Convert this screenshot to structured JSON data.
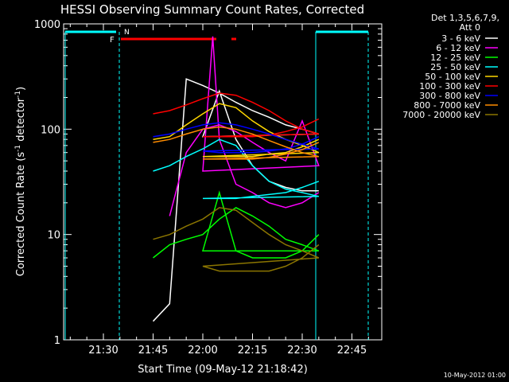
{
  "chart_data": {
    "type": "line",
    "title": "HESSI Observing Summary Count Rates, Corrected",
    "xlabel": "Start Time (09-May-12 21:18:42)",
    "ylabel_main": "Corrected Count Rate (s",
    "ylabel_sup1": "-1",
    "ylabel_mid": " detector",
    "ylabel_sup2": "-1",
    "ylabel_end": ")",
    "footer_date": "10-May-2012 01:00",
    "y_scale": "log",
    "xlim_minutes": [
      21.3,
      22.9
    ],
    "ylim": [
      1,
      1000
    ],
    "x_ticks": [
      "21:30",
      "21:45",
      "22:00",
      "22:15",
      "22:30",
      "22:45"
    ],
    "y_ticks": [
      "1",
      "10",
      "100",
      "1000"
    ],
    "legend": {
      "header1": "Det 1,3,5,6,7,9,",
      "header2": "Att 0",
      "position": "right"
    },
    "flags": [
      {
        "label": "F",
        "color": "#ff0000"
      },
      {
        "label": "N",
        "color": "#00ffff"
      }
    ],
    "series": [
      {
        "name": "3 - 6 keV",
        "color": "#ffffff",
        "points": [
          [
            21.45,
            1.5
          ],
          [
            21.5,
            2.2
          ],
          [
            21.55,
            300
          ],
          [
            21.6,
            260
          ],
          [
            21.65,
            220
          ],
          [
            21.7,
            180
          ],
          [
            21.75,
            150
          ],
          [
            21.8,
            130
          ],
          [
            21.85,
            110
          ],
          [
            21.9,
            100
          ],
          [
            21.95,
            90
          ],
          [
            22.0,
            85
          ],
          [
            22.05,
            230
          ],
          [
            22.1,
            80
          ],
          [
            22.15,
            45
          ],
          [
            22.2,
            32
          ],
          [
            22.25,
            28
          ],
          [
            22.3,
            26
          ],
          [
            22.35,
            26
          ]
        ]
      },
      {
        "name": "6 - 12 keV",
        "color": "#ff00ff",
        "points": [
          [
            21.5,
            15
          ],
          [
            21.55,
            60
          ],
          [
            21.6,
            100
          ],
          [
            21.65,
            110
          ],
          [
            21.7,
            95
          ],
          [
            21.75,
            75
          ],
          [
            21.8,
            60
          ],
          [
            21.85,
            50
          ],
          [
            21.9,
            120
          ],
          [
            21.95,
            45
          ],
          [
            22.0,
            40
          ],
          [
            22.03,
            760
          ],
          [
            22.05,
            80
          ],
          [
            22.1,
            30
          ],
          [
            22.15,
            25
          ],
          [
            22.2,
            20
          ],
          [
            22.25,
            18
          ],
          [
            22.3,
            20
          ],
          [
            22.35,
            25
          ]
        ]
      },
      {
        "name": "12 - 25 keV",
        "color": "#00ff00",
        "points": [
          [
            21.45,
            6
          ],
          [
            21.5,
            8
          ],
          [
            21.55,
            9
          ],
          [
            21.6,
            10
          ],
          [
            21.65,
            14
          ],
          [
            21.7,
            18
          ],
          [
            21.75,
            15
          ],
          [
            21.8,
            12
          ],
          [
            21.85,
            9
          ],
          [
            21.9,
            8
          ],
          [
            21.95,
            7
          ],
          [
            22.0,
            7
          ],
          [
            22.05,
            25
          ],
          [
            22.1,
            7
          ],
          [
            22.15,
            6
          ],
          [
            22.2,
            6
          ],
          [
            22.25,
            6
          ],
          [
            22.3,
            7
          ],
          [
            22.35,
            10
          ]
        ]
      },
      {
        "name": "25 - 50 keV",
        "color": "#00ffff",
        "points": [
          [
            21.45,
            40
          ],
          [
            21.5,
            45
          ],
          [
            21.55,
            55
          ],
          [
            21.6,
            65
          ],
          [
            21.65,
            80
          ],
          [
            21.7,
            70
          ],
          [
            21.75,
            45
          ],
          [
            21.8,
            32
          ],
          [
            21.85,
            27
          ],
          [
            21.9,
            25
          ],
          [
            21.95,
            23
          ],
          [
            22.0,
            22
          ],
          [
            22.05,
            22
          ],
          [
            22.1,
            22
          ],
          [
            22.15,
            23
          ],
          [
            22.2,
            24
          ],
          [
            22.25,
            25
          ],
          [
            22.3,
            28
          ],
          [
            22.35,
            32
          ]
        ]
      },
      {
        "name": "50 - 100 keV",
        "color": "#ffd700",
        "points": [
          [
            21.45,
            80
          ],
          [
            21.5,
            85
          ],
          [
            21.55,
            110
          ],
          [
            21.6,
            140
          ],
          [
            21.65,
            175
          ],
          [
            21.7,
            160
          ],
          [
            21.75,
            120
          ],
          [
            21.8,
            95
          ],
          [
            21.85,
            80
          ],
          [
            21.9,
            70
          ],
          [
            21.95,
            60
          ],
          [
            22.0,
            55
          ],
          [
            22.05,
            55
          ],
          [
            22.1,
            55
          ],
          [
            22.15,
            55
          ],
          [
            22.2,
            58
          ],
          [
            22.25,
            60
          ],
          [
            22.3,
            68
          ],
          [
            22.35,
            80
          ]
        ]
      },
      {
        "name": "100 - 300 keV",
        "color": "#ff0000",
        "points": [
          [
            21.45,
            140
          ],
          [
            21.5,
            150
          ],
          [
            21.55,
            170
          ],
          [
            21.6,
            195
          ],
          [
            21.65,
            220
          ],
          [
            21.7,
            210
          ],
          [
            21.75,
            180
          ],
          [
            21.8,
            150
          ],
          [
            21.85,
            120
          ],
          [
            21.9,
            100
          ],
          [
            21.95,
            90
          ],
          [
            22.0,
            85
          ],
          [
            22.05,
            85
          ],
          [
            22.1,
            85
          ],
          [
            22.15,
            85
          ],
          [
            22.2,
            88
          ],
          [
            22.25,
            95
          ],
          [
            22.3,
            105
          ],
          [
            22.35,
            125
          ]
        ]
      },
      {
        "name": "300 - 800 keV",
        "color": "#0000ff",
        "points": [
          [
            21.45,
            85
          ],
          [
            21.5,
            90
          ],
          [
            21.55,
            100
          ],
          [
            21.6,
            110
          ],
          [
            21.65,
            115
          ],
          [
            21.7,
            110
          ],
          [
            21.75,
            100
          ],
          [
            21.8,
            90
          ],
          [
            21.85,
            80
          ],
          [
            21.9,
            72
          ],
          [
            21.95,
            65
          ],
          [
            22.0,
            62
          ],
          [
            22.05,
            60
          ],
          [
            22.1,
            60
          ],
          [
            22.15,
            60
          ],
          [
            22.2,
            62
          ],
          [
            22.25,
            65
          ],
          [
            22.3,
            72
          ],
          [
            22.35,
            85
          ]
        ]
      },
      {
        "name": "800 - 7000 keV",
        "color": "#ff8c00",
        "points": [
          [
            21.45,
            75
          ],
          [
            21.5,
            80
          ],
          [
            21.55,
            90
          ],
          [
            21.6,
            100
          ],
          [
            21.65,
            105
          ],
          [
            21.7,
            100
          ],
          [
            21.75,
            90
          ],
          [
            21.8,
            78
          ],
          [
            21.85,
            68
          ],
          [
            21.9,
            60
          ],
          [
            21.95,
            55
          ],
          [
            22.0,
            52
          ],
          [
            22.05,
            52
          ],
          [
            22.1,
            52
          ],
          [
            22.15,
            52
          ],
          [
            22.2,
            54
          ],
          [
            22.25,
            58
          ],
          [
            22.3,
            64
          ],
          [
            22.35,
            75
          ]
        ]
      },
      {
        "name": "7000 - 20000 keV",
        "color": "#8b7500",
        "points": [
          [
            21.45,
            9
          ],
          [
            21.5,
            10
          ],
          [
            21.55,
            12
          ],
          [
            21.6,
            14
          ],
          [
            21.65,
            18
          ],
          [
            21.7,
            17
          ],
          [
            21.75,
            13
          ],
          [
            21.8,
            10
          ],
          [
            21.85,
            8
          ],
          [
            21.9,
            7
          ],
          [
            21.95,
            6
          ],
          [
            22.0,
            5
          ],
          [
            22.05,
            4.5
          ],
          [
            22.1,
            4.5
          ],
          [
            22.15,
            4.5
          ],
          [
            22.2,
            4.5
          ],
          [
            22.25,
            5
          ],
          [
            22.3,
            6
          ],
          [
            22.35,
            8
          ]
        ]
      }
    ]
  }
}
